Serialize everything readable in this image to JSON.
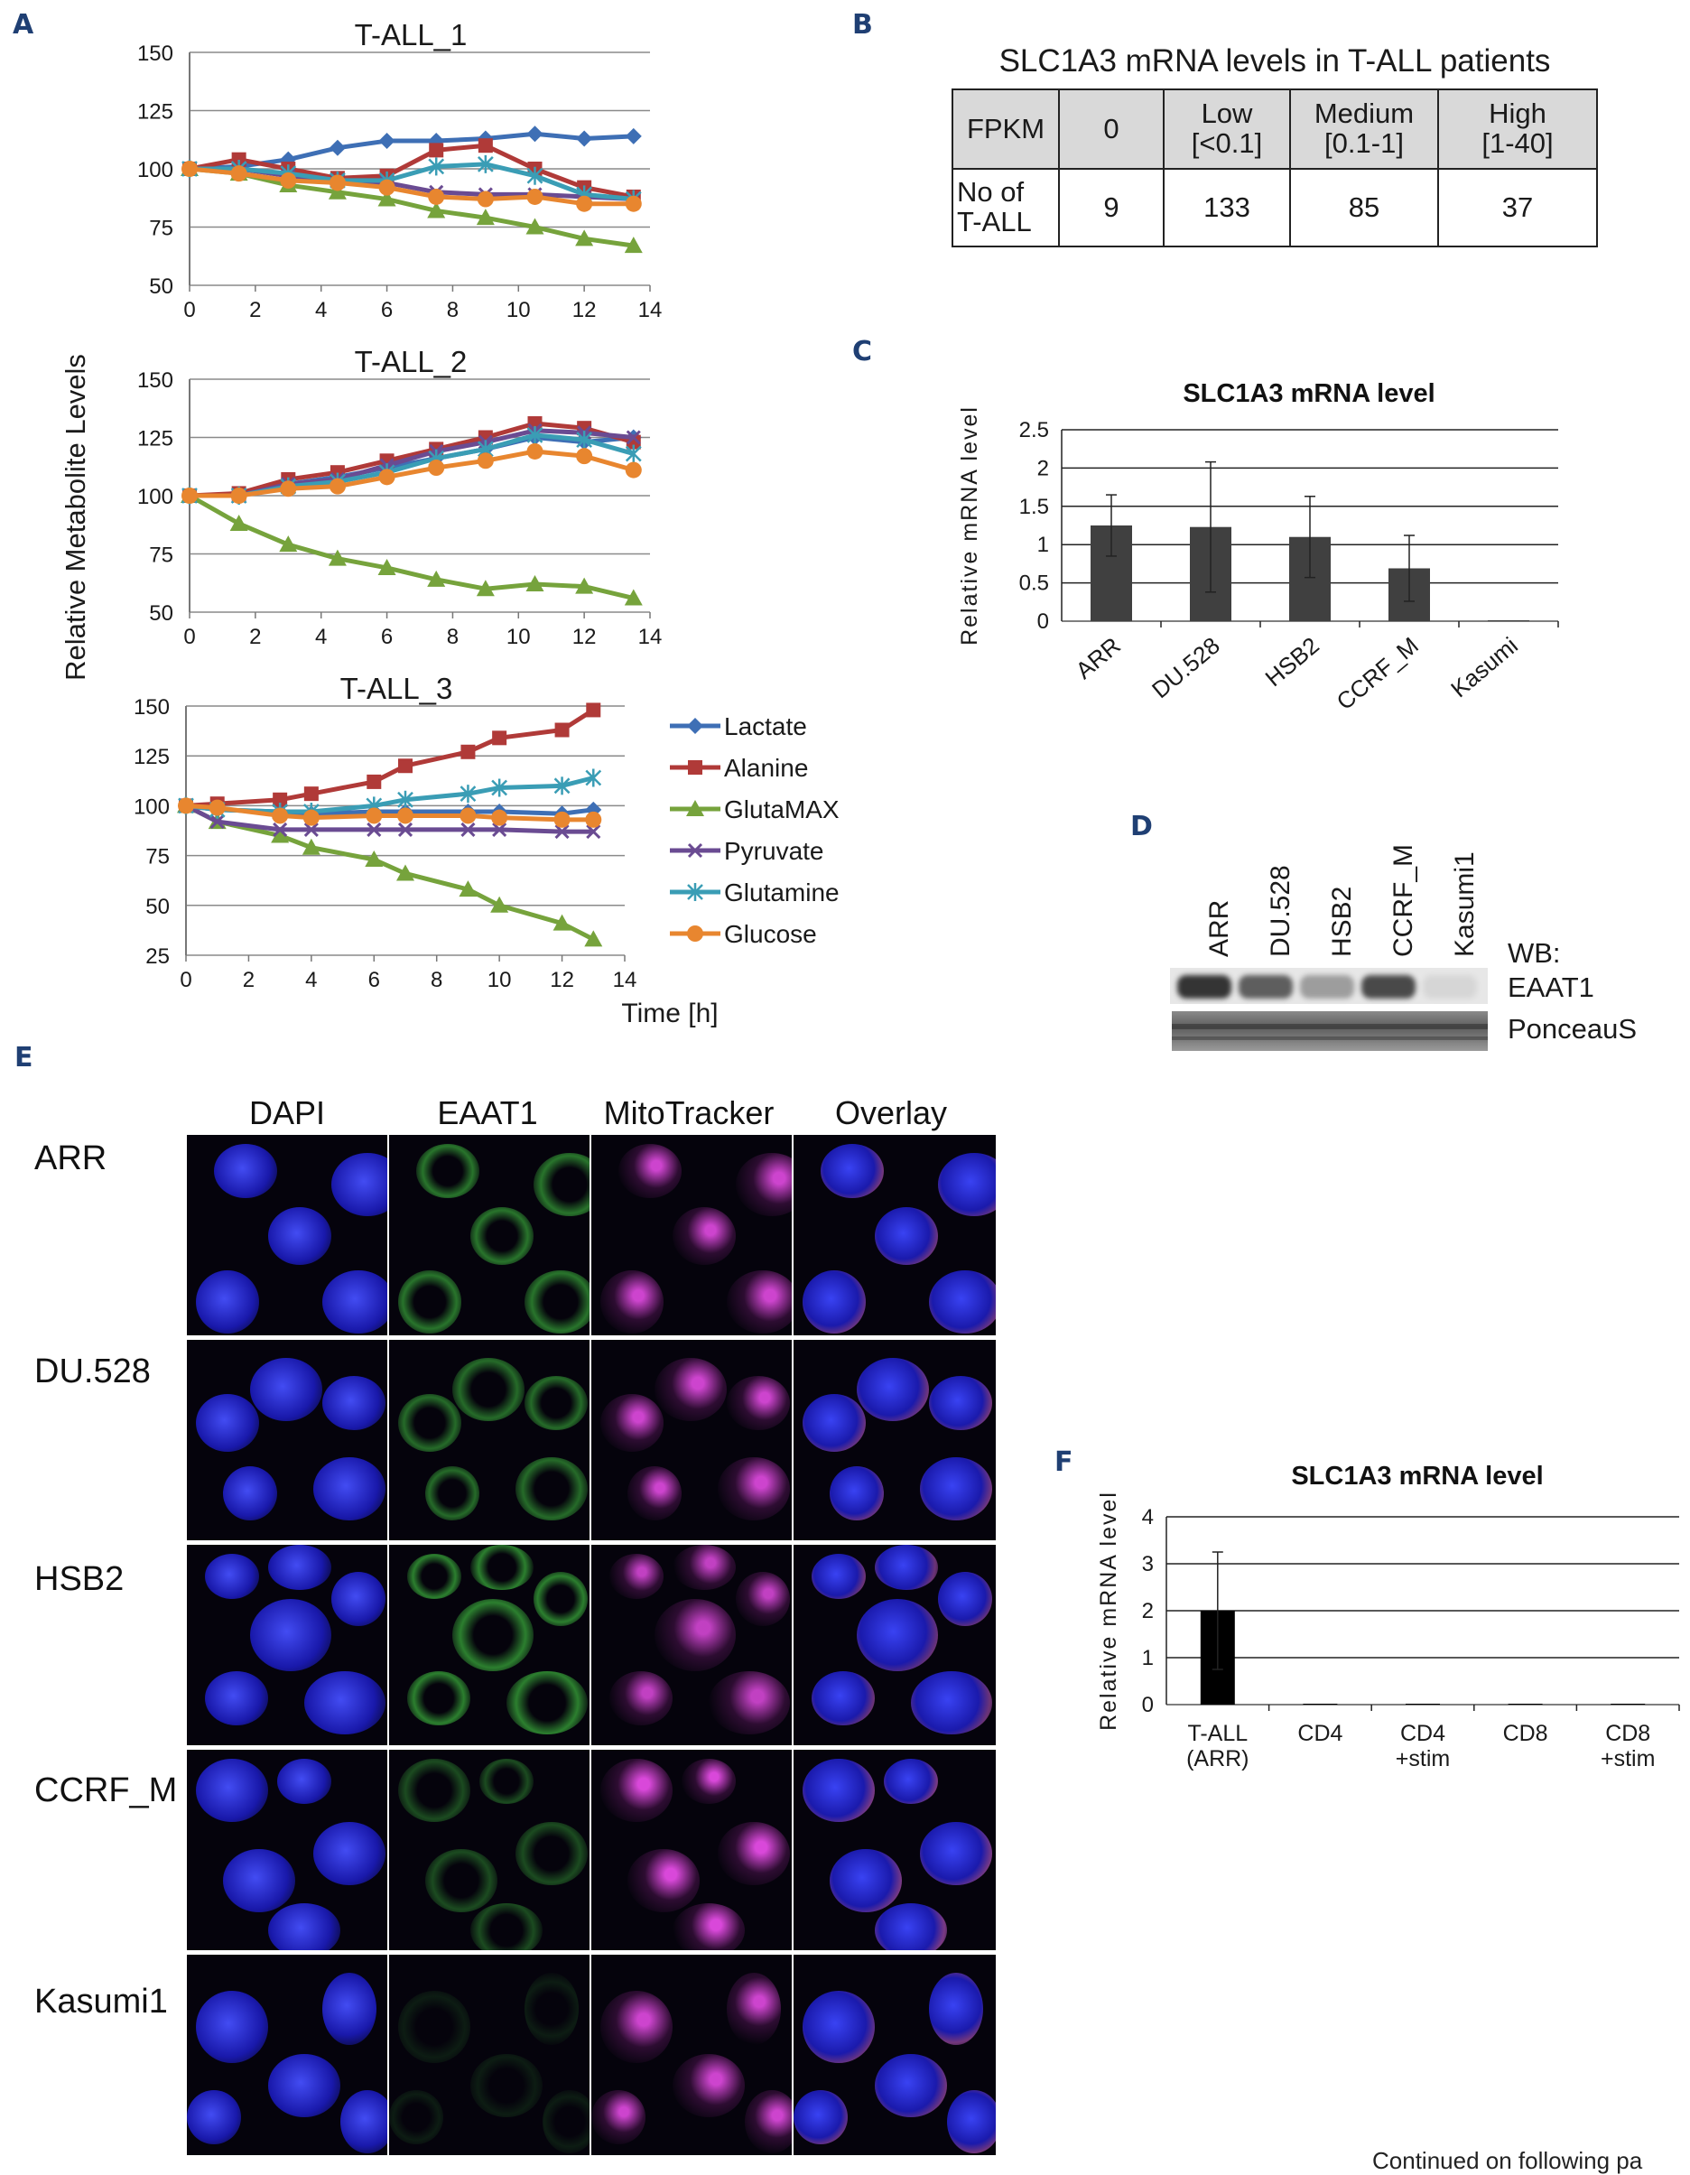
{
  "panels": {
    "a": "A",
    "b": "B",
    "c": "C",
    "d": "D",
    "e": "E",
    "f": "F"
  },
  "panelA": {
    "ylabel": "Relative Metabolite Levels",
    "xlabel": "Time [h]",
    "legend": [
      "Lactate",
      "Alanine",
      "GlutaMAX",
      "Pyruvate",
      "Glutamine",
      "Glucose"
    ]
  },
  "panelB": {
    "title": "SLC1A3 mRNA levels in T-ALL patients",
    "header": [
      "FPKM",
      "0",
      "Low\n[<0.1]",
      "Medium\n[0.1-1]",
      "High\n[1-40]"
    ],
    "row": [
      "No of\nT-ALL",
      "9",
      "133",
      "85",
      "37"
    ]
  },
  "panelD": {
    "lanes": [
      "ARR",
      "DU.528",
      "HSB2",
      "CCRF_M",
      "Kasumi1"
    ],
    "wb_label": "WB:",
    "band1": "EAAT1",
    "band2": "PonceauS",
    "band1_intensity": [
      0.85,
      0.65,
      0.35,
      0.75,
      0.08
    ]
  },
  "panelE": {
    "columns": [
      "DAPI",
      "EAAT1",
      "MitoTracker",
      "Overlay"
    ],
    "rows": [
      "ARR",
      "DU.528",
      "HSB2",
      "CCRF_M",
      "Kasumi1"
    ]
  },
  "footer": "Continued on following pa",
  "colors": {
    "Lactate": "#3e6fb5",
    "Alanine": "#b03a38",
    "GlutaMAX": "#76a33c",
    "Pyruvate": "#6a4b92",
    "Glutamine": "#3a9db5",
    "Glucose": "#e8862f",
    "bar": "#404040",
    "barF": "#000000",
    "panel": "#1f3f73"
  },
  "chart_data": [
    {
      "type": "line",
      "title": "T-ALL_1",
      "xlim": [
        0,
        14
      ],
      "ylim": [
        50,
        150
      ],
      "xticks": [
        0,
        2,
        4,
        6,
        8,
        10,
        12,
        14
      ],
      "yticks": [
        50,
        75,
        100,
        125,
        150
      ],
      "series": [
        {
          "name": "Lactate",
          "x": [
            0,
            1.5,
            3,
            4.5,
            6,
            7.5,
            9,
            10.5,
            12,
            13.5
          ],
          "values": [
            100,
            101,
            104,
            109,
            112,
            112,
            113,
            115,
            113,
            114
          ]
        },
        {
          "name": "Alanine",
          "x": [
            0,
            1.5,
            3,
            4.5,
            6,
            7.5,
            9,
            10.5,
            12,
            13.5
          ],
          "values": [
            100,
            104,
            100,
            96,
            97,
            108,
            110,
            100,
            92,
            88
          ]
        },
        {
          "name": "GlutaMAX",
          "x": [
            0,
            1.5,
            3,
            4.5,
            6,
            7.5,
            9,
            10.5,
            12,
            13.5
          ],
          "values": [
            100,
            98,
            93,
            90,
            87,
            82,
            79,
            75,
            70,
            67
          ]
        },
        {
          "name": "Pyruvate",
          "x": [
            0,
            1.5,
            3,
            4.5,
            6,
            7.5,
            9,
            10.5,
            12,
            13.5
          ],
          "values": [
            100,
            100,
            97,
            95,
            94,
            90,
            89,
            89,
            88,
            87
          ]
        },
        {
          "name": "Glutamine",
          "x": [
            0,
            1.5,
            3,
            4.5,
            6,
            7.5,
            9,
            10.5,
            12,
            13.5
          ],
          "values": [
            100,
            100,
            98,
            95,
            95,
            101,
            102,
            97,
            89,
            87
          ]
        },
        {
          "name": "Glucose",
          "x": [
            0,
            1.5,
            3,
            4.5,
            6,
            7.5,
            9,
            10.5,
            12,
            13.5
          ],
          "values": [
            100,
            98,
            95,
            94,
            92,
            88,
            87,
            88,
            85,
            85
          ]
        }
      ]
    },
    {
      "type": "line",
      "title": "T-ALL_2",
      "xlim": [
        0,
        14
      ],
      "ylim": [
        50,
        150
      ],
      "xticks": [
        0,
        2,
        4,
        6,
        8,
        10,
        12,
        14
      ],
      "yticks": [
        50,
        75,
        100,
        125,
        150
      ],
      "series": [
        {
          "name": "Lactate",
          "x": [
            0,
            1.5,
            3,
            4.5,
            6,
            7.5,
            9,
            10.5,
            12,
            13.5
          ],
          "values": [
            100,
            100,
            105,
            108,
            112,
            116,
            120,
            125,
            123,
            125
          ]
        },
        {
          "name": "Alanine",
          "x": [
            0,
            1.5,
            3,
            4.5,
            6,
            7.5,
            9,
            10.5,
            12,
            13.5
          ],
          "values": [
            100,
            101,
            107,
            110,
            115,
            120,
            125,
            131,
            129,
            123
          ]
        },
        {
          "name": "GlutaMAX",
          "x": [
            0,
            1.5,
            3,
            4.5,
            6,
            7.5,
            9,
            10.5,
            12,
            13.5
          ],
          "values": [
            100,
            88,
            79,
            73,
            69,
            64,
            60,
            62,
            61,
            56
          ]
        },
        {
          "name": "Pyruvate",
          "x": [
            0,
            1.5,
            3,
            4.5,
            6,
            7.5,
            9,
            10.5,
            12,
            13.5
          ],
          "values": [
            100,
            100,
            105,
            107,
            113,
            119,
            123,
            128,
            127,
            125
          ]
        },
        {
          "name": "Glutamine",
          "x": [
            0,
            1.5,
            3,
            4.5,
            6,
            7.5,
            9,
            10.5,
            12,
            13.5
          ],
          "values": [
            100,
            100,
            104,
            106,
            110,
            116,
            120,
            126,
            124,
            118
          ]
        },
        {
          "name": "Glucose",
          "x": [
            0,
            1.5,
            3,
            4.5,
            6,
            7.5,
            9,
            10.5,
            12,
            13.5
          ],
          "values": [
            100,
            100,
            103,
            104,
            108,
            112,
            115,
            119,
            117,
            111
          ]
        }
      ]
    },
    {
      "type": "line",
      "title": "T-ALL_3",
      "xlim": [
        0,
        14
      ],
      "ylim": [
        25,
        150
      ],
      "xticks": [
        0,
        2,
        4,
        6,
        8,
        10,
        12,
        14
      ],
      "yticks": [
        25,
        50,
        75,
        100,
        125,
        150
      ],
      "series": [
        {
          "name": "Lactate",
          "x": [
            0,
            1,
            3,
            4,
            6,
            7,
            9,
            10,
            12,
            13
          ],
          "values": [
            100,
            98,
            97,
            96,
            97,
            97,
            97,
            97,
            96,
            98
          ]
        },
        {
          "name": "Alanine",
          "x": [
            0,
            1,
            3,
            4,
            6,
            7,
            9,
            10,
            12,
            13
          ],
          "values": [
            100,
            101,
            103,
            106,
            112,
            120,
            127,
            134,
            138,
            148
          ]
        },
        {
          "name": "GlutaMAX",
          "x": [
            0,
            1,
            3,
            4,
            6,
            7,
            9,
            10,
            12,
            13
          ],
          "values": [
            100,
            92,
            85,
            79,
            73,
            66,
            58,
            50,
            41,
            33
          ]
        },
        {
          "name": "Pyruvate",
          "x": [
            0,
            1,
            3,
            4,
            6,
            7,
            9,
            10,
            12,
            13
          ],
          "values": [
            100,
            92,
            88,
            88,
            88,
            88,
            88,
            88,
            87,
            87
          ]
        },
        {
          "name": "Glutamine",
          "x": [
            0,
            1,
            3,
            4,
            6,
            7,
            9,
            10,
            12,
            13
          ],
          "values": [
            100,
            98,
            97,
            97,
            100,
            103,
            106,
            109,
            110,
            114
          ]
        },
        {
          "name": "Glucose",
          "x": [
            0,
            1,
            3,
            4,
            6,
            7,
            9,
            10,
            12,
            13
          ],
          "values": [
            100,
            99,
            95,
            94,
            95,
            95,
            95,
            94,
            93,
            93
          ]
        }
      ]
    },
    {
      "type": "bar",
      "title": "SLC1A3 mRNA level",
      "ylabel": "Relative mRNA level",
      "categories": [
        "ARR",
        "DU.528",
        "HSB2",
        "CCRF_M",
        "Kasumi"
      ],
      "values": [
        1.25,
        1.23,
        1.1,
        0.69,
        0.0
      ],
      "errors": [
        0.4,
        0.85,
        0.53,
        0.43,
        0.0
      ],
      "ylim": [
        0,
        2.5
      ],
      "yticks": [
        "0",
        "0.5",
        "1",
        "1.5",
        "2",
        "2.5"
      ]
    },
    {
      "type": "bar",
      "title": "SLC1A3 mRNA level",
      "ylabel": "Relative mRNA level",
      "categories": [
        "T-ALL\n(ARR)",
        "CD4",
        "CD4\n+stim",
        "CD8",
        "CD8\n+stim"
      ],
      "values": [
        2.0,
        0.0,
        0.0,
        0.0,
        0.0
      ],
      "errors": [
        1.25,
        0,
        0,
        0,
        0
      ],
      "ylim": [
        0,
        4
      ],
      "yticks": [
        "0",
        "1",
        "2",
        "3",
        "4"
      ]
    }
  ]
}
